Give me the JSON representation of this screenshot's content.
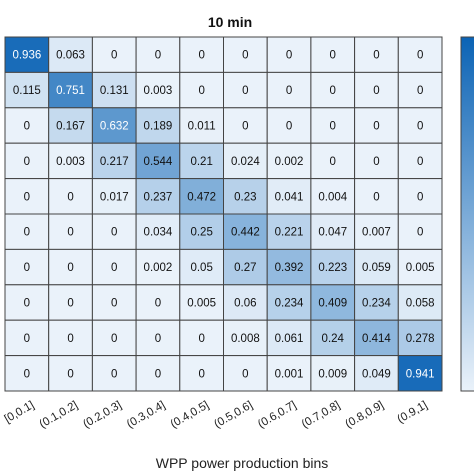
{
  "chart_data": {
    "type": "heatmap",
    "title": "10 min",
    "xlabel": "WPP power production bins",
    "ylabel": "",
    "x_categories": [
      "[0,0.1]",
      "(0.1,0.2]",
      "(0.2,0.3]",
      "(0.3,0.4]",
      "(0.4,0.5]",
      "(0.5,0.6]",
      "(0.6,0.7]",
      "(0.7,0.8]",
      "(0.8,0.9]",
      "(0.9,1]"
    ],
    "values": [
      [
        0.936,
        0.063,
        0,
        0,
        0,
        0,
        0,
        0,
        0,
        0
      ],
      [
        0.115,
        0.751,
        0.131,
        0.003,
        0,
        0,
        0,
        0,
        0,
        0
      ],
      [
        0,
        0.167,
        0.632,
        0.189,
        0.011,
        0,
        0,
        0,
        0,
        0
      ],
      [
        0,
        0.003,
        0.217,
        0.544,
        0.21,
        0.024,
        0.002,
        0,
        0,
        0
      ],
      [
        0,
        0,
        0.017,
        0.237,
        0.472,
        0.23,
        0.041,
        0.004,
        0,
        0
      ],
      [
        0,
        0,
        0,
        0.034,
        0.25,
        0.442,
        0.221,
        0.047,
        0.007,
        0
      ],
      [
        0,
        0,
        0,
        0.002,
        0.05,
        0.27,
        0.392,
        0.223,
        0.059,
        0.005
      ],
      [
        0,
        0,
        0,
        0,
        0.005,
        0.06,
        0.234,
        0.409,
        0.234,
        0.058
      ],
      [
        0,
        0,
        0,
        0,
        0,
        0.008,
        0.061,
        0.24,
        0.414,
        0.278
      ],
      [
        0,
        0,
        0,
        0,
        0,
        0,
        0.001,
        0.009,
        0.049,
        0.941
      ]
    ],
    "colormap": {
      "low": "#eaf2fa",
      "high": "#0b63b5"
    },
    "value_range": [
      0,
      1
    ],
    "colorbar": true,
    "grid": true
  }
}
